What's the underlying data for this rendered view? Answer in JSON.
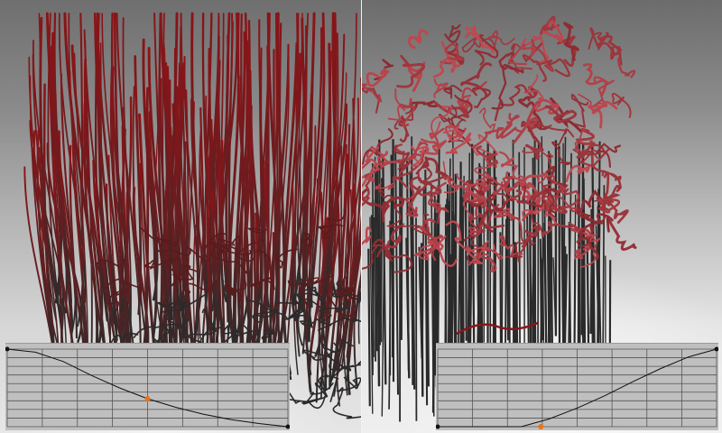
{
  "viewports": [
    {
      "id": "left",
      "hair_style": "straight",
      "base_color": "#2b2b2b",
      "tip_color": "#8a1418"
    },
    {
      "id": "right",
      "hair_style": "curly",
      "base_color": "#2a2a2a",
      "tip_color": "#c24a52"
    }
  ],
  "curve_editors": [
    {
      "id": "left",
      "curve_color": "#111111",
      "endpoint_color": "#111111",
      "control_point_color": "#e8731c",
      "curve": [
        [
          0,
          1.0
        ],
        [
          0.1,
          0.96
        ],
        [
          0.2,
          0.84
        ],
        [
          0.3,
          0.66
        ],
        [
          0.4,
          0.5
        ],
        [
          0.5,
          0.36
        ],
        [
          0.6,
          0.25
        ],
        [
          0.7,
          0.16
        ],
        [
          0.8,
          0.09
        ],
        [
          0.9,
          0.04
        ],
        [
          1.0,
          0.0
        ]
      ],
      "control_point": [
        0.5,
        0.36
      ]
    },
    {
      "id": "right",
      "curve_color": "#111111",
      "endpoint_color": "#111111",
      "control_point_color": "#e8731c",
      "curve": [
        [
          0,
          0.0
        ],
        [
          0.1,
          0.0
        ],
        [
          0.2,
          0.0
        ],
        [
          0.3,
          0.0
        ],
        [
          0.4,
          0.1
        ],
        [
          0.5,
          0.24
        ],
        [
          0.6,
          0.4
        ],
        [
          0.7,
          0.58
        ],
        [
          0.8,
          0.75
        ],
        [
          0.9,
          0.9
        ],
        [
          1.0,
          1.0
        ]
      ],
      "control_point": [
        0.37,
        0.0
      ]
    }
  ],
  "grid": {
    "columns": 8,
    "rows": 9,
    "line_color": "#555555"
  }
}
